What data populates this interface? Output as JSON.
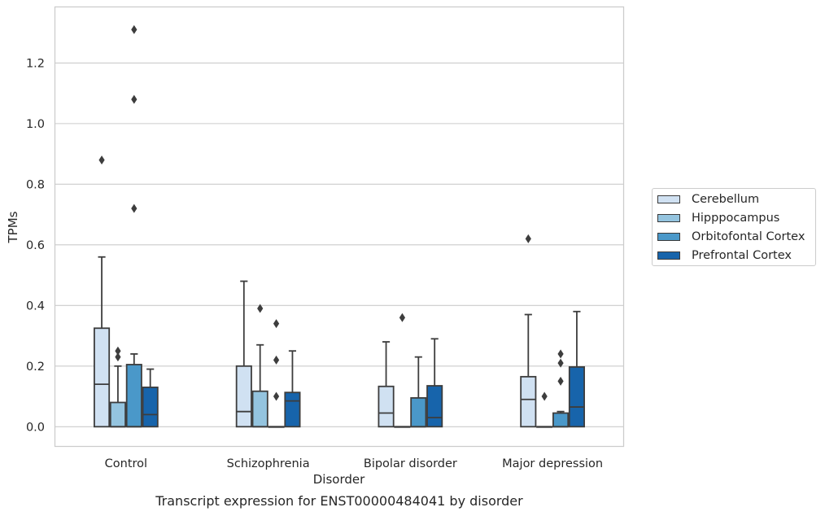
{
  "chart_data": {
    "type": "box",
    "caption": "Transcript expression for ENST00000484041 by disorder",
    "xlabel": "Disorder",
    "ylabel": "TPMs",
    "ylim": [
      -0.065,
      1.385
    ],
    "yticks": [
      0.0,
      0.2,
      0.4,
      0.6,
      0.8,
      1.0,
      1.2
    ],
    "ytick_labels": [
      "0.0",
      "0.2",
      "0.4",
      "0.6",
      "0.8",
      "1.0",
      "1.2"
    ],
    "grid": "horizontal",
    "legend_position": "right",
    "categories": [
      "Control",
      "Schizophrenia",
      "Bipolar disorder",
      "Major depression"
    ],
    "series": [
      {
        "name": "Cerebellum",
        "color": "#d0e1f2",
        "boxes": [
          {
            "q1": 0.0,
            "median": 0.14,
            "q3": 0.325,
            "whisker_low": 0.0,
            "whisker_high": 0.56,
            "outliers": [
              0.88
            ]
          },
          {
            "q1": 0.0,
            "median": 0.05,
            "q3": 0.2,
            "whisker_low": 0.0,
            "whisker_high": 0.48,
            "outliers": []
          },
          {
            "q1": 0.0,
            "median": 0.045,
            "q3": 0.133,
            "whisker_low": 0.0,
            "whisker_high": 0.28,
            "outliers": []
          },
          {
            "q1": 0.0,
            "median": 0.09,
            "q3": 0.165,
            "whisker_low": 0.0,
            "whisker_high": 0.37,
            "outliers": [
              0.62
            ]
          }
        ]
      },
      {
        "name": "Hipppocampus",
        "color": "#94c4df",
        "boxes": [
          {
            "q1": 0.0,
            "median": 0.0,
            "q3": 0.08,
            "whisker_low": 0.0,
            "whisker_high": 0.2,
            "outliers": [
              0.23,
              0.25
            ]
          },
          {
            "q1": 0.0,
            "median": 0.0,
            "q3": 0.117,
            "whisker_low": 0.0,
            "whisker_high": 0.27,
            "outliers": [
              0.39
            ]
          },
          {
            "q1": 0.0,
            "median": 0.0,
            "q3": 0.0,
            "whisker_low": 0.0,
            "whisker_high": 0.0,
            "outliers": [
              0.36
            ]
          },
          {
            "q1": 0.0,
            "median": 0.0,
            "q3": 0.0,
            "whisker_low": 0.0,
            "whisker_high": 0.0,
            "outliers": [
              0.1
            ]
          }
        ]
      },
      {
        "name": "Orbitofontal Cortex",
        "color": "#4a98c9",
        "boxes": [
          {
            "q1": 0.0,
            "median": 0.0,
            "q3": 0.205,
            "whisker_low": 0.0,
            "whisker_high": 0.24,
            "outliers": [
              0.72,
              1.08,
              1.31
            ]
          },
          {
            "q1": 0.0,
            "median": 0.0,
            "q3": 0.0,
            "whisker_low": 0.0,
            "whisker_high": 0.0,
            "outliers": [
              0.1,
              0.22,
              0.34
            ]
          },
          {
            "q1": 0.0,
            "median": 0.0,
            "q3": 0.095,
            "whisker_low": 0.0,
            "whisker_high": 0.23,
            "outliers": []
          },
          {
            "q1": 0.0,
            "median": 0.0,
            "q3": 0.045,
            "whisker_low": 0.0,
            "whisker_high": 0.05,
            "outliers": [
              0.15,
              0.21,
              0.24
            ]
          }
        ]
      },
      {
        "name": "Prefrontal Cortex",
        "color": "#1764ab",
        "boxes": [
          {
            "q1": 0.0,
            "median": 0.04,
            "q3": 0.13,
            "whisker_low": 0.0,
            "whisker_high": 0.19,
            "outliers": []
          },
          {
            "q1": 0.0,
            "median": 0.085,
            "q3": 0.113,
            "whisker_low": 0.0,
            "whisker_high": 0.25,
            "outliers": []
          },
          {
            "q1": 0.0,
            "median": 0.03,
            "q3": 0.135,
            "whisker_low": 0.0,
            "whisker_high": 0.29,
            "outliers": []
          },
          {
            "q1": 0.0,
            "median": 0.065,
            "q3": 0.197,
            "whisker_low": 0.0,
            "whisker_high": 0.38,
            "outliers": []
          }
        ]
      }
    ]
  }
}
